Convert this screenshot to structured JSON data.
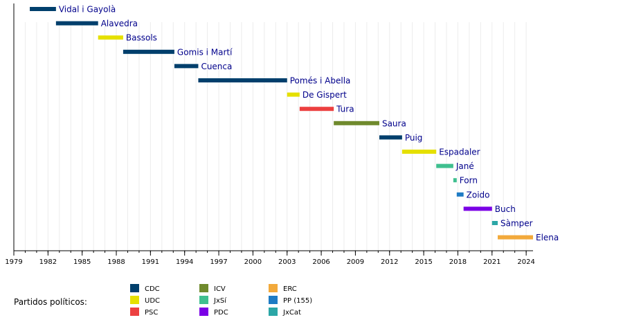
{
  "chart_data": {
    "type": "bar",
    "orientation": "horizontal",
    "xlim": [
      1979,
      2024.6
    ],
    "xticks": [
      1979,
      1982,
      1985,
      1988,
      1991,
      1994,
      1997,
      2000,
      2003,
      2006,
      2009,
      2012,
      2015,
      2018,
      2021,
      2024
    ],
    "grid": true,
    "bars": [
      {
        "name": "Vidal i Gayolà",
        "start": 1980.4,
        "end": 1982.7,
        "party": "CDC"
      },
      {
        "name": "Alavedra",
        "start": 1982.7,
        "end": 1986.4,
        "party": "CDC"
      },
      {
        "name": "Bassols",
        "start": 1986.4,
        "end": 1988.6,
        "party": "UDC"
      },
      {
        "name": "Gomis i Martí",
        "start": 1988.6,
        "end": 1993.1,
        "party": "CDC"
      },
      {
        "name": "Cuenca",
        "start": 1993.1,
        "end": 1995.2,
        "party": "CDC"
      },
      {
        "name": "Pomés i Abella",
        "start": 1995.2,
        "end": 2003.0,
        "party": "CDC"
      },
      {
        "name": "De Gispert",
        "start": 2003.0,
        "end": 2004.1,
        "party": "UDC"
      },
      {
        "name": "Tura",
        "start": 2004.1,
        "end": 2007.1,
        "party": "PSC"
      },
      {
        "name": "Saura",
        "start": 2007.1,
        "end": 2011.1,
        "party": "ICV"
      },
      {
        "name": "Puig",
        "start": 2011.1,
        "end": 2013.1,
        "party": "CDC"
      },
      {
        "name": "Espadaler",
        "start": 2013.1,
        "end": 2016.1,
        "party": "UDC"
      },
      {
        "name": "Jané",
        "start": 2016.1,
        "end": 2017.6,
        "party": "JxSí"
      },
      {
        "name": "Forn",
        "start": 2017.6,
        "end": 2017.9,
        "party": "JxSí"
      },
      {
        "name": "Zoido",
        "start": 2017.9,
        "end": 2018.5,
        "party": "PP (155)"
      },
      {
        "name": "Buch",
        "start": 2018.5,
        "end": 2021.0,
        "party": "PDC"
      },
      {
        "name": "Sàmper",
        "start": 2021.0,
        "end": 2021.5,
        "party": "JxCat"
      },
      {
        "name": "Elena",
        "start": 2021.5,
        "end": 2024.6,
        "party": "ERC"
      }
    ],
    "legend": {
      "title": "Partidos políticos:",
      "placement": "bottom",
      "entries": [
        {
          "label": "CDC",
          "color": "#003f6c"
        },
        {
          "label": "UDC",
          "color": "#e5e000"
        },
        {
          "label": "PSC",
          "color": "#ec4040"
        },
        {
          "label": "ICV",
          "color": "#6f8a2d"
        },
        {
          "label": "JxSí",
          "color": "#3fbf8f"
        },
        {
          "label": "PDC",
          "color": "#7a00e6"
        },
        {
          "label": "ERC",
          "color": "#f2a93b"
        },
        {
          "label": "PP (155)",
          "color": "#1e7bc4"
        },
        {
          "label": "JxCat",
          "color": "#2ba6a6"
        }
      ]
    }
  }
}
